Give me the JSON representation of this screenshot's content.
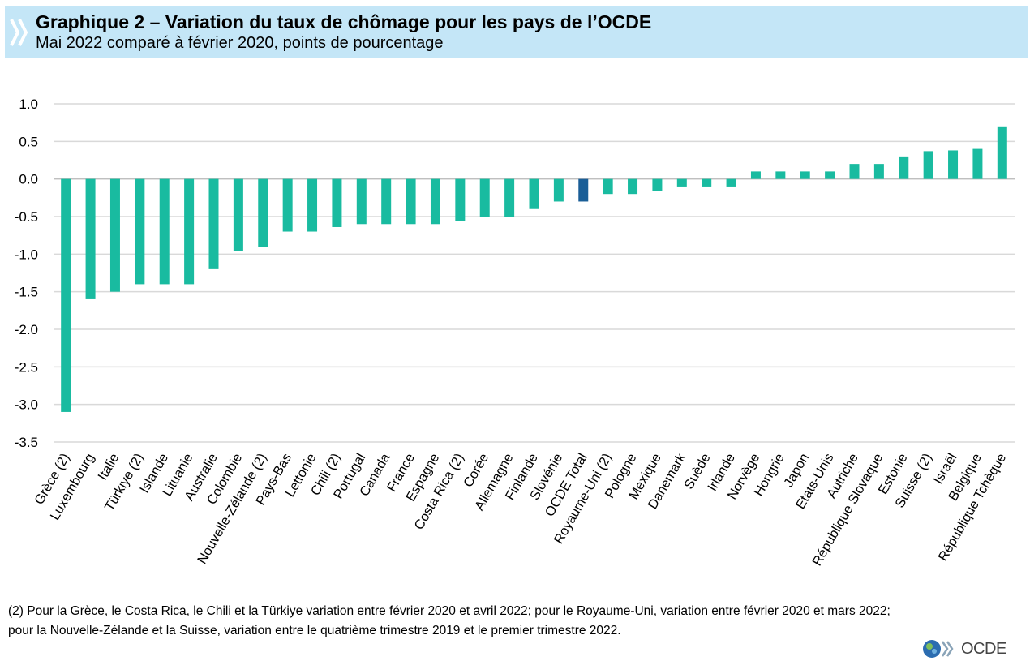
{
  "header": {
    "title": "Graphique 2 – Variation du taux de chômage pour les pays de l’OCDE",
    "subtitle": "Mai 2022 comparé à février 2020, points de pourcentage"
  },
  "footnote": {
    "line1": "(2) Pour la Grèce, le Costa Rica, le Chili et la Türkiye variation entre février 2020 et avril 2022; pour le Royaume-Uni, variation entre février 2020 et mars 2022;",
    "line2": "pour la Nouvelle-Zélande et la Suisse, variation entre le quatrième trimestre 2019 et le premier trimestre 2022."
  },
  "logo": {
    "text": "OCDE",
    "icon": "oecd-globe-icon"
  },
  "colors": {
    "bar": "#19bba0",
    "highlight": "#1a5e97",
    "grid": "#d9d9d9",
    "header_bg": "#c4e6f7"
  },
  "chart_data": {
    "type": "bar",
    "title": "Graphique 2 – Variation du taux de chômage pour les pays de l’OCDE",
    "subtitle": "Mai 2022 comparé à février 2020, points de pourcentage",
    "xlabel": "",
    "ylabel": "",
    "ylim": [
      -3.5,
      1.0
    ],
    "yticks": [
      1.0,
      0.5,
      0.0,
      -0.5,
      -1.0,
      -1.5,
      -2.0,
      -2.5,
      -3.0,
      -3.5
    ],
    "ytick_labels": [
      "1.0",
      "0.5",
      "0.0",
      "-0.5",
      "-1.0",
      "-1.5",
      "-2.0",
      "-2.5",
      "-3.0",
      "-3.5"
    ],
    "grid": true,
    "legend": false,
    "highlight_category": "OCDE Total",
    "categories": [
      "Grèce (2)",
      "Luxembourg",
      "Italie",
      "Türkiye (2)",
      "Islande",
      "Lituanie",
      "Australie",
      "Colombie",
      "Nouvelle-Zélande (2)",
      "Pays-Bas",
      "Lettonie",
      "Chili (2)",
      "Portugal",
      "Canada",
      "France",
      "Espagne",
      "Costa Rica (2)",
      "Corée",
      "Allemagne",
      "Finlande",
      "Slovénie",
      "OCDE Total",
      "Royaume-Uni (2)",
      "Pologne",
      "Mexique",
      "Danemark",
      "Suède",
      "Irlande",
      "Norvège",
      "Hongrie",
      "Japon",
      "États-Unis",
      "Autriche",
      "République Slovaque",
      "Estonie",
      "Suisse (2)",
      "Israël",
      "Belgique",
      "République Tchèque"
    ],
    "values": [
      -3.1,
      -1.6,
      -1.5,
      -1.4,
      -1.4,
      -1.4,
      -1.2,
      -0.96,
      -0.9,
      -0.7,
      -0.7,
      -0.64,
      -0.6,
      -0.6,
      -0.6,
      -0.6,
      -0.56,
      -0.5,
      -0.5,
      -0.4,
      -0.3,
      -0.3,
      -0.2,
      -0.2,
      -0.16,
      -0.1,
      -0.1,
      -0.1,
      0.1,
      0.1,
      0.1,
      0.1,
      0.2,
      0.2,
      0.3,
      0.37,
      0.38,
      0.4,
      0.7
    ]
  }
}
